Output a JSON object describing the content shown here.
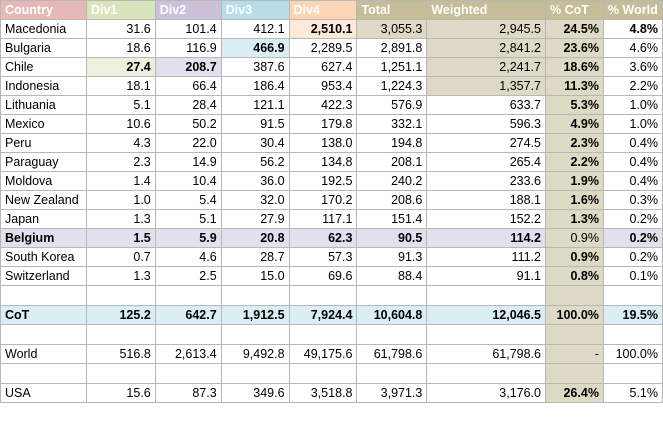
{
  "colors": {
    "country_header": "#e6b8b7",
    "div1_header": "#d8e4bc",
    "div2_header": "#ccc0da",
    "div3_header": "#b7dee8",
    "div4_header": "#fcd5b4",
    "total_header": "#c4bd97",
    "weighted_header": "#c4bd97",
    "cot_header": "#c4bd97",
    "world_header": "#c4bd97",
    "tan_fill": "#ddd9c4",
    "cot_row_fill": "#dbeef3",
    "belgium_fill": "#e4dfec",
    "chile_div1_fill": "#ebf1de",
    "bulgaria_div3_fill": "#daeef3",
    "macedonia_div4_fill": "#fde9d9",
    "chile_div2_fill": "#e4dfec"
  },
  "headers": {
    "country": "Country",
    "div1": "Div1",
    "div2": "Div2",
    "div3": "Div3",
    "div4": "Div4",
    "total": "Total",
    "weighted": "Weighted",
    "cot": "% CoT",
    "world": "% World"
  },
  "rows": [
    {
      "country": "Macedonia",
      "div1": "31.6",
      "div2": "101.4",
      "div3": "412.1",
      "div4": "2,510.1",
      "total": "3,055.3",
      "weighted": "2,945.5",
      "cot": "24.5%",
      "world": "4.8%"
    },
    {
      "country": "Bulgaria",
      "div1": "18.6",
      "div2": "116.9",
      "div3": "466.9",
      "div4": "2,289.5",
      "total": "2,891.8",
      "weighted": "2,841.2",
      "cot": "23.6%",
      "world": "4.6%"
    },
    {
      "country": "Chile",
      "div1": "27.4",
      "div2": "208.7",
      "div3": "387.6",
      "div4": "627.4",
      "total": "1,251.1",
      "weighted": "2,241.7",
      "cot": "18.6%",
      "world": "3.6%"
    },
    {
      "country": "Indonesia",
      "div1": "18.1",
      "div2": "66.4",
      "div3": "186.4",
      "div4": "953.4",
      "total": "1,224.3",
      "weighted": "1,357.7",
      "cot": "11.3%",
      "world": "2.2%"
    },
    {
      "country": "Lithuania",
      "div1": "5.1",
      "div2": "28.4",
      "div3": "121.1",
      "div4": "422.3",
      "total": "576.9",
      "weighted": "633.7",
      "cot": "5.3%",
      "world": "1.0%"
    },
    {
      "country": "Mexico",
      "div1": "10.6",
      "div2": "50.2",
      "div3": "91.5",
      "div4": "179.8",
      "total": "332.1",
      "weighted": "596.3",
      "cot": "4.9%",
      "world": "1.0%"
    },
    {
      "country": "Peru",
      "div1": "4.3",
      "div2": "22.0",
      "div3": "30.4",
      "div4": "138.0",
      "total": "194.8",
      "weighted": "274.5",
      "cot": "2.3%",
      "world": "0.4%"
    },
    {
      "country": "Paraguay",
      "div1": "2.3",
      "div2": "14.9",
      "div3": "56.2",
      "div4": "134.8",
      "total": "208.1",
      "weighted": "265.4",
      "cot": "2.2%",
      "world": "0.4%"
    },
    {
      "country": "Moldova",
      "div1": "1.4",
      "div2": "10.4",
      "div3": "36.0",
      "div4": "192.5",
      "total": "240.2",
      "weighted": "233.6",
      "cot": "1.9%",
      "world": "0.4%"
    },
    {
      "country": "New Zealand",
      "div1": "1.0",
      "div2": "5.4",
      "div3": "32.0",
      "div4": "170.2",
      "total": "208.6",
      "weighted": "188.1",
      "cot": "1.6%",
      "world": "0.3%"
    },
    {
      "country": "Japan",
      "div1": "1.3",
      "div2": "5.1",
      "div3": "27.9",
      "div4": "117.1",
      "total": "151.4",
      "weighted": "152.2",
      "cot": "1.3%",
      "world": "0.2%"
    },
    {
      "country": "Belgium",
      "div1": "1.5",
      "div2": "5.9",
      "div3": "20.8",
      "div4": "62.3",
      "total": "90.5",
      "weighted": "114.2",
      "cot": "0.9%",
      "world": "0.2%"
    },
    {
      "country": "South Korea",
      "div1": "0.7",
      "div2": "4.6",
      "div3": "28.7",
      "div4": "57.3",
      "total": "91.3",
      "weighted": "111.2",
      "cot": "0.9%",
      "world": "0.2%"
    },
    {
      "country": "Switzerland",
      "div1": "1.3",
      "div2": "2.5",
      "div3": "15.0",
      "div4": "69.6",
      "total": "88.4",
      "weighted": "91.1",
      "cot": "0.8%",
      "world": "0.1%"
    }
  ],
  "cot_row": {
    "country": "CoT",
    "div1": "125.2",
    "div2": "642.7",
    "div3": "1,912.5",
    "div4": "7,924.4",
    "total": "10,604.8",
    "weighted": "12,046.5",
    "cot": "100.0%",
    "world": "19.5%"
  },
  "world_row": {
    "country": "World",
    "div1": "516.8",
    "div2": "2,613.4",
    "div3": "9,492.8",
    "div4": "49,175.6",
    "total": "61,798.6",
    "weighted": "61,798.6",
    "cot": "-",
    "world": "100.0%"
  },
  "usa_row": {
    "country": "USA",
    "div1": "15.6",
    "div2": "87.3",
    "div3": "349.6",
    "div4": "3,518.8",
    "total": "3,971.3",
    "weighted": "3,176.0",
    "cot": "26.4%",
    "world": "5.1%"
  }
}
